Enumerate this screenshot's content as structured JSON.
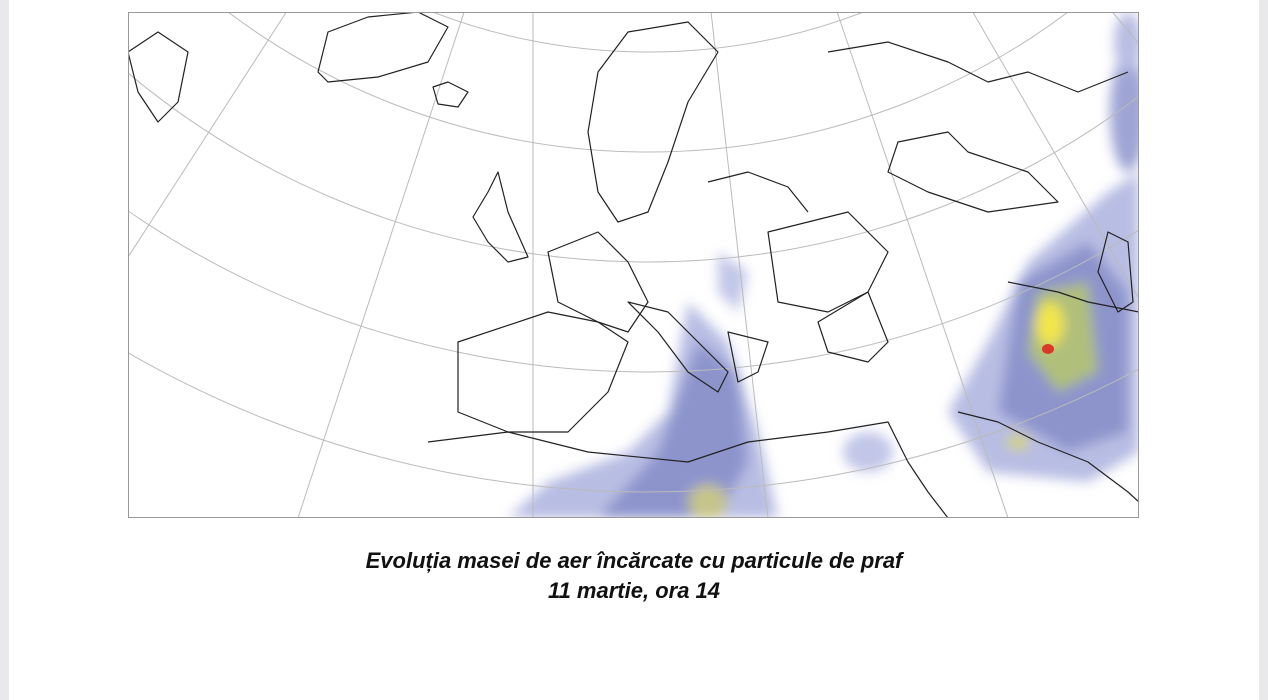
{
  "caption": {
    "title": "Evoluția masei de aer încărcate cu particule de praf",
    "date": "11 martie, ora 14"
  }
}
